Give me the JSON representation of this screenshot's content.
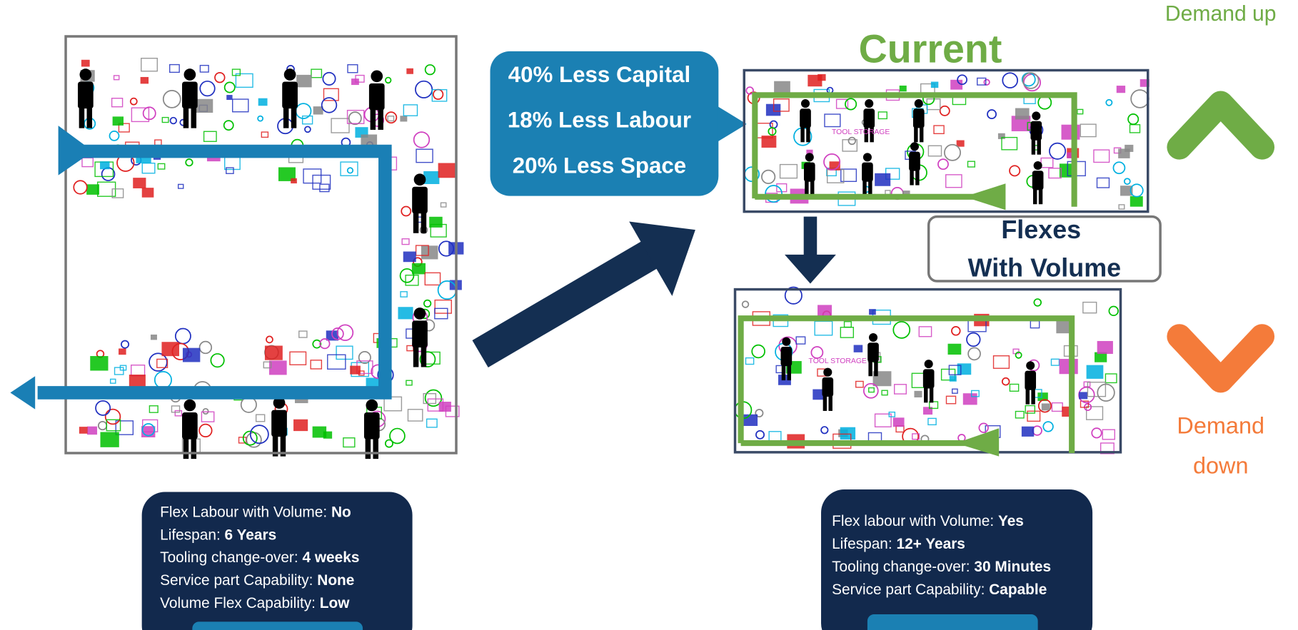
{
  "demand_up": "Demand up",
  "current_title": "Current",
  "savings": [
    "40% Less Capital",
    "18% Less Labour",
    "20% Less Space"
  ],
  "flex_label": [
    "Flexes",
    "With Volume"
  ],
  "demand_down": [
    "Demand",
    "down"
  ],
  "plan_labels": [
    "TOOL STORAGE",
    "TOOL STORAGE"
  ],
  "before_panel": {
    "rows": [
      {
        "label": "Flex Labour with Volume:",
        "value": "No"
      },
      {
        "label": "Lifespan:",
        "value": "6 Years"
      },
      {
        "label": "Tooling change-over:",
        "value": "4 weeks"
      },
      {
        "label": "Service part Capability:",
        "value": "None"
      },
      {
        "label": "Volume Flex Capability:",
        "value": "Low"
      }
    ]
  },
  "after_panel": {
    "rows": [
      {
        "label": "Flex labour with Volume:",
        "value": "Yes"
      },
      {
        "label": "Lifespan:",
        "value": "12+ Years"
      },
      {
        "label": "Tooling change-over:",
        "value": "30 Minutes"
      },
      {
        "label": "Service part Capability:",
        "value": "Capable"
      }
    ]
  }
}
